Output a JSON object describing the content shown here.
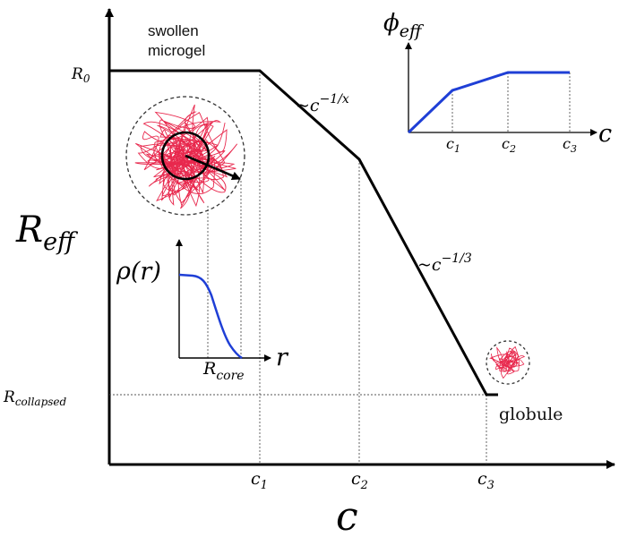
{
  "main_axes": {
    "y_label": "R",
    "y_label_sub": "eff",
    "x_label": "c",
    "y_ticks": {
      "r0_base": "R",
      "r0_sub": "0",
      "rcol_base": "R",
      "rcol_sub": "collapsed"
    },
    "x_ticks": [
      {
        "base": "c",
        "sub": "1"
      },
      {
        "base": "c",
        "sub": "2"
      },
      {
        "base": "c",
        "sub": "3"
      }
    ]
  },
  "annotations": {
    "swollen_line1": "swollen",
    "swollen_line2": "microgel",
    "slope1_prefix": "~c",
    "slope1_exp": "−1/x",
    "slope2_prefix": "~c",
    "slope2_exp": "−1/3",
    "globule": "globule"
  },
  "inset_phi": {
    "y_label": "ϕ",
    "y_label_sub": "eff",
    "x_label": "c",
    "x_ticks": [
      {
        "base": "c",
        "sub": "1"
      },
      {
        "base": "c",
        "sub": "2"
      },
      {
        "base": "c",
        "sub": "3"
      }
    ]
  },
  "inset_rho": {
    "y_label": "ρ(r)",
    "x_label": "r",
    "x_tick_base": "R",
    "x_tick_sub": "core"
  },
  "colors": {
    "curve": "#000000",
    "inset_curve": "#1f3fd6",
    "coil": "#e8284d",
    "guide": "#555555"
  }
}
